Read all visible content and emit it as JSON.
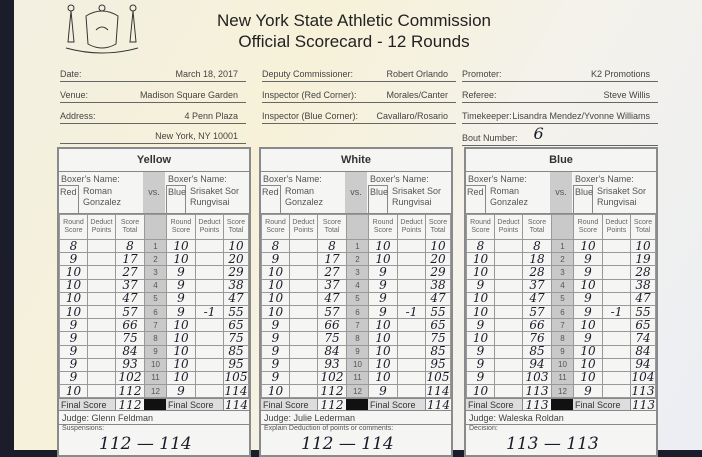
{
  "header": {
    "title_line1": "New York State Athletic Commission",
    "title_line2": "Official Scorecard - 12 Rounds",
    "seal": "New York State seal - EXCELSIOR"
  },
  "fields": [
    {
      "label": "Date:",
      "value": "March 18, 2017"
    },
    {
      "label": "Venue:",
      "value": "Madison Square Garden"
    },
    {
      "label": "Address:",
      "value": "4 Penn Plaza"
    },
    {
      "label": "",
      "value": "New York, NY 10001"
    },
    {
      "label": "Deputy Commissioner:",
      "value": "Robert Orlando"
    },
    {
      "label": "Inspector (Red Corner):",
      "value": "Morales/Canter"
    },
    {
      "label": "Inspector (Blue Corner):",
      "value": "Cavallaro/Rosario"
    },
    {
      "label": "Promoter:",
      "value": "K2 Promotions"
    },
    {
      "label": "Referee:",
      "value": "Steve Willis"
    },
    {
      "label": "Timekeeper:",
      "value": "Lisandra Mendez/Yvonne Williams"
    },
    {
      "label": "Bout Number:",
      "value": "6"
    }
  ],
  "labels": {
    "boxer_name": "Boxer's Name:",
    "red": "Red",
    "blue": "Blue",
    "vs": "vs.",
    "round_score": "Round Score",
    "deduct_points": "Deduct Points",
    "score_total": "Score Total",
    "final_score": "Final Score"
  },
  "red_boxer": "Roman Gonzalez",
  "blue_boxer": "Srisaket Sor Rungvisai",
  "cards": [
    {
      "title": "Yellow",
      "judge": "Judge: Glenn Feldman",
      "note_label": "Suspensions:",
      "handwritten": "112 — 114",
      "red_round": [
        "8",
        "9",
        "10",
        "10",
        "10",
        "10",
        "9",
        "9",
        "9",
        "9",
        "9",
        "10"
      ],
      "red_deduct": [
        "",
        "",
        "",
        "",
        "",
        "",
        "",
        "",
        "",
        "",
        "",
        ""
      ],
      "red_total": [
        "8",
        "17",
        "27",
        "37",
        "47",
        "57",
        "66",
        "75",
        "84",
        "93",
        "102",
        "112"
      ],
      "blue_round": [
        "10",
        "10",
        "9",
        "9",
        "9",
        "9",
        "10",
        "10",
        "10",
        "10",
        "10",
        "9"
      ],
      "blue_deduct": [
        "",
        "",
        "",
        "",
        "",
        "-1",
        "",
        "",
        "",
        "",
        "",
        ""
      ],
      "blue_total": [
        "10",
        "20",
        "29",
        "38",
        "47",
        "55",
        "65",
        "75",
        "85",
        "95",
        "105",
        "114"
      ],
      "red_final": "112",
      "blue_final": "114"
    },
    {
      "title": "White",
      "judge": "Judge: Julie Lederman",
      "note_label": "Explain Deduction of points or comments:",
      "handwritten": "112 — 114",
      "red_round": [
        "8",
        "9",
        "10",
        "10",
        "10",
        "10",
        "9",
        "9",
        "9",
        "9",
        "9",
        "10"
      ],
      "red_deduct": [
        "",
        "",
        "",
        "",
        "",
        "",
        "",
        "",
        "",
        "",
        "",
        ""
      ],
      "red_total": [
        "8",
        "17",
        "27",
        "37",
        "47",
        "57",
        "66",
        "75",
        "84",
        "93",
        "102",
        "112"
      ],
      "blue_round": [
        "10",
        "10",
        "9",
        "9",
        "9",
        "9",
        "10",
        "10",
        "10",
        "10",
        "10",
        "9"
      ],
      "blue_deduct": [
        "",
        "",
        "",
        "",
        "",
        "-1",
        "",
        "",
        "",
        "",
        "",
        ""
      ],
      "blue_total": [
        "10",
        "20",
        "29",
        "38",
        "47",
        "55",
        "65",
        "75",
        "85",
        "95",
        "105",
        "114"
      ],
      "red_final": "112",
      "blue_final": "114"
    },
    {
      "title": "Blue",
      "judge": "Judge: Waleska Roldan",
      "note_label": "Decision:",
      "handwritten": "113 — 113",
      "red_round": [
        "8",
        "10",
        "10",
        "9",
        "10",
        "10",
        "9",
        "10",
        "9",
        "9",
        "9",
        "10"
      ],
      "red_deduct": [
        "",
        "",
        "",
        "",
        "",
        "",
        "",
        "",
        "",
        "",
        "",
        ""
      ],
      "red_total": [
        "8",
        "18",
        "28",
        "37",
        "47",
        "57",
        "66",
        "76",
        "85",
        "94",
        "103",
        "113"
      ],
      "blue_round": [
        "10",
        "9",
        "9",
        "10",
        "9",
        "9",
        "10",
        "9",
        "10",
        "10",
        "10",
        "9"
      ],
      "blue_deduct": [
        "",
        "",
        "",
        "",
        "",
        "-1",
        "",
        "",
        "",
        "",
        "",
        ""
      ],
      "blue_total": [
        "10",
        "19",
        "28",
        "38",
        "47",
        "55",
        "65",
        "74",
        "84",
        "94",
        "104",
        "113"
      ],
      "red_final": "113",
      "blue_final": "113"
    }
  ],
  "rounds": [
    "1",
    "2",
    "3",
    "4",
    "5",
    "6",
    "7",
    "8",
    "9",
    "10",
    "11",
    "12"
  ]
}
